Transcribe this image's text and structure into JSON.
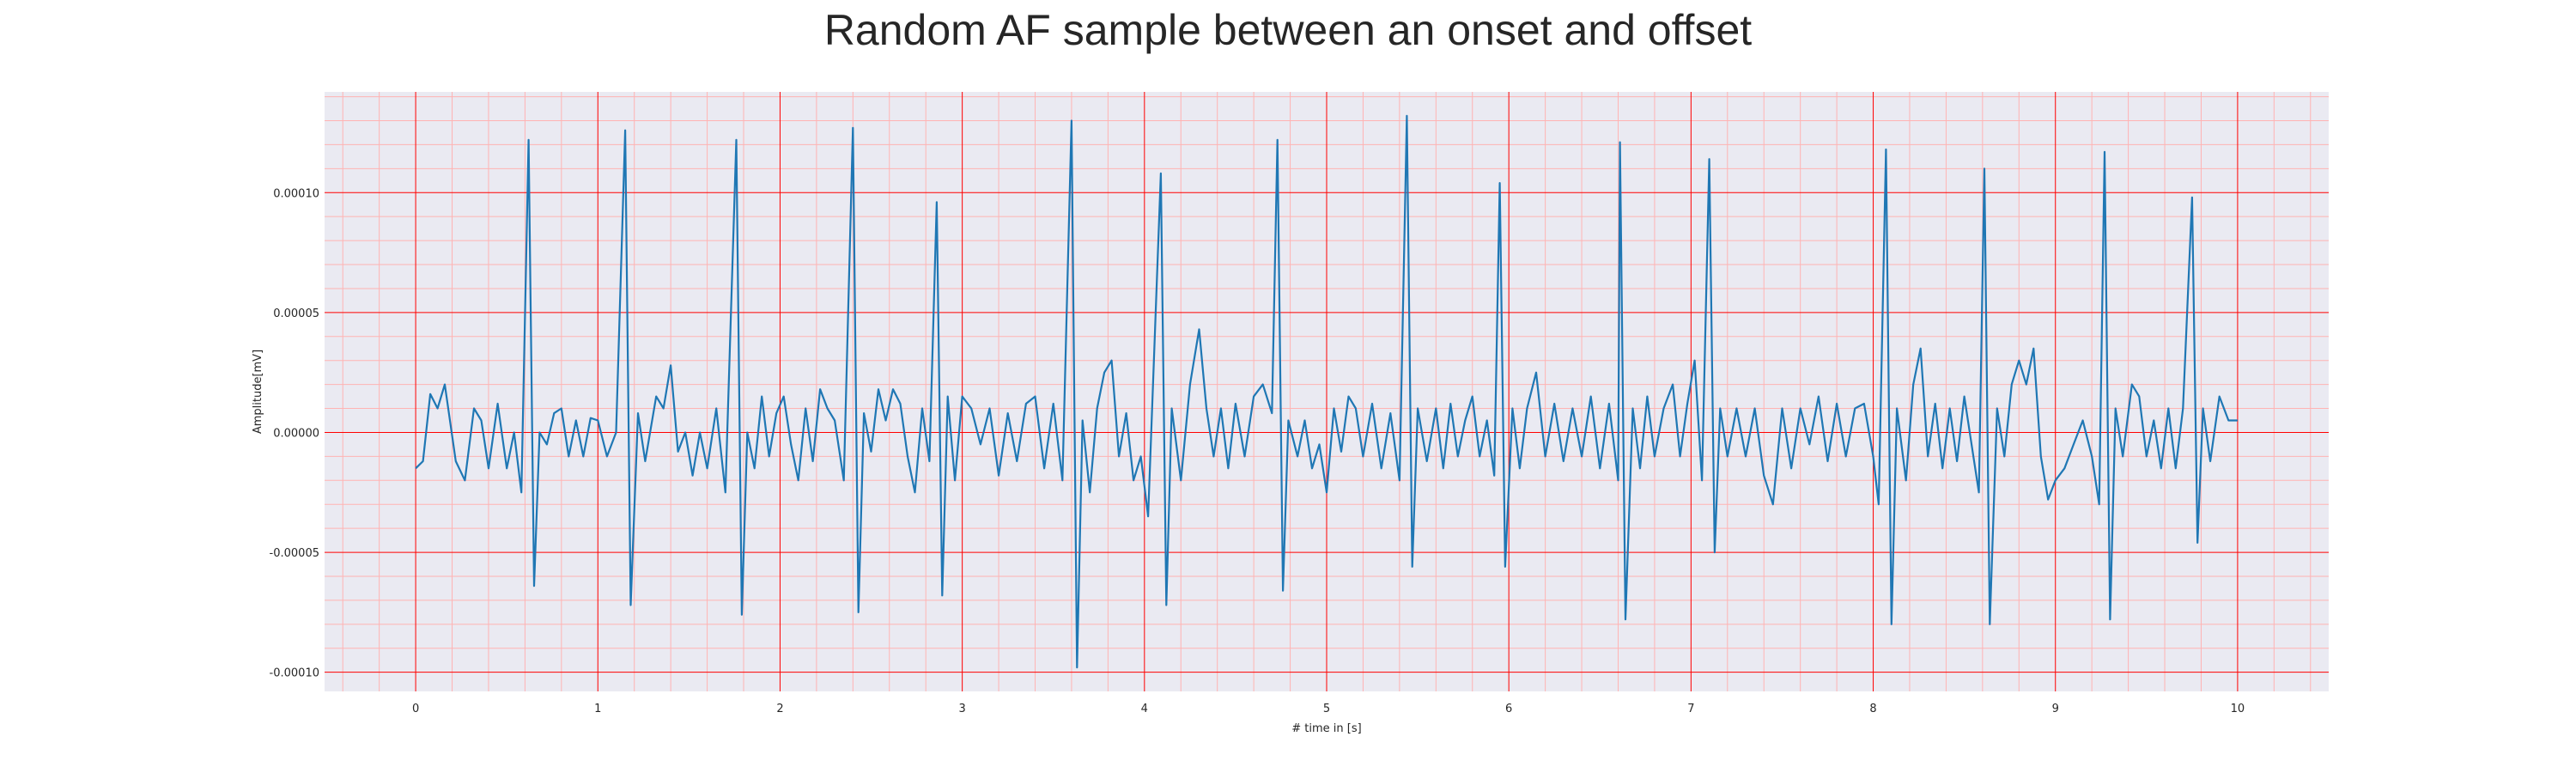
{
  "chart_data": {
    "type": "line",
    "title": "Random AF sample between an onset and offset",
    "xlabel": "# time in [s]",
    "ylabel": "Amplitude[mV]",
    "xlim": [
      -0.5,
      10.5
    ],
    "ylim": [
      -0.000108,
      0.000142
    ],
    "xticks": [
      "0",
      "1",
      "2",
      "3",
      "4",
      "5",
      "6",
      "7",
      "8",
      "9",
      "10"
    ],
    "yticks": [
      "-0.00010",
      "-0.00005",
      "0.00000",
      "0.00005",
      "0.00010"
    ],
    "grid": true,
    "minor_grid": true,
    "colors": {
      "line": "#1f77b4",
      "background": "#eaeaf2",
      "major_grid": "#ff0000",
      "minor_grid": "#ffb3b3"
    },
    "series": [
      {
        "values": [
          [
            0.0,
            -1.5e-05
          ],
          [
            0.04,
            -1.2e-05
          ],
          [
            0.08,
            1.6e-05
          ],
          [
            0.12,
            1e-05
          ],
          [
            0.16,
            2e-05
          ],
          [
            0.22,
            -1.2e-05
          ],
          [
            0.27,
            -2e-05
          ],
          [
            0.32,
            1e-05
          ],
          [
            0.36,
            5e-06
          ],
          [
            0.4,
            -1.5e-05
          ],
          [
            0.45,
            1.2e-05
          ],
          [
            0.5,
            -1.5e-05
          ],
          [
            0.54,
            0.0
          ],
          [
            0.58,
            -2.5e-05
          ],
          [
            0.62,
            0.000122
          ],
          [
            0.65,
            -6.4e-05
          ],
          [
            0.68,
            0.0
          ],
          [
            0.72,
            -5e-06
          ],
          [
            0.76,
            8e-06
          ],
          [
            0.8,
            1e-05
          ],
          [
            0.84,
            -1e-05
          ],
          [
            0.88,
            5e-06
          ],
          [
            0.92,
            -1e-05
          ],
          [
            0.96,
            6e-06
          ],
          [
            1.0,
            5e-06
          ],
          [
            1.05,
            -1e-05
          ],
          [
            1.1,
            0.0
          ],
          [
            1.15,
            0.000126
          ],
          [
            1.18,
            -7.2e-05
          ],
          [
            1.22,
            8e-06
          ],
          [
            1.26,
            -1.2e-05
          ],
          [
            1.32,
            1.5e-05
          ],
          [
            1.36,
            1e-05
          ],
          [
            1.4,
            2.8e-05
          ],
          [
            1.44,
            -8e-06
          ],
          [
            1.48,
            0.0
          ],
          [
            1.52,
            -1.8e-05
          ],
          [
            1.56,
            0.0
          ],
          [
            1.6,
            -1.5e-05
          ],
          [
            1.65,
            1e-05
          ],
          [
            1.7,
            -2.5e-05
          ],
          [
            1.76,
            0.000122
          ],
          [
            1.79,
            -7.6e-05
          ],
          [
            1.82,
            0.0
          ],
          [
            1.86,
            -1.5e-05
          ],
          [
            1.9,
            1.5e-05
          ],
          [
            1.94,
            -1e-05
          ],
          [
            1.98,
            8e-06
          ],
          [
            2.02,
            1.5e-05
          ],
          [
            2.06,
            -5e-06
          ],
          [
            2.1,
            -2e-05
          ],
          [
            2.14,
            1e-05
          ],
          [
            2.18,
            -1.2e-05
          ],
          [
            2.22,
            1.8e-05
          ],
          [
            2.26,
            1e-05
          ],
          [
            2.3,
            5e-06
          ],
          [
            2.35,
            -2e-05
          ],
          [
            2.4,
            0.000127
          ],
          [
            2.43,
            -7.5e-05
          ],
          [
            2.46,
            8e-06
          ],
          [
            2.5,
            -8e-06
          ],
          [
            2.54,
            1.8e-05
          ],
          [
            2.58,
            5e-06
          ],
          [
            2.62,
            1.8e-05
          ],
          [
            2.66,
            1.2e-05
          ],
          [
            2.7,
            -1e-05
          ],
          [
            2.74,
            -2.5e-05
          ],
          [
            2.78,
            1e-05
          ],
          [
            2.82,
            -1.2e-05
          ],
          [
            2.86,
            9.6e-05
          ],
          [
            2.89,
            -6.8e-05
          ],
          [
            2.92,
            1.5e-05
          ],
          [
            2.96,
            -2e-05
          ],
          [
            3.0,
            1.5e-05
          ],
          [
            3.05,
            1e-05
          ],
          [
            3.1,
            -5e-06
          ],
          [
            3.15,
            1e-05
          ],
          [
            3.2,
            -1.8e-05
          ],
          [
            3.25,
            8e-06
          ],
          [
            3.3,
            -1.2e-05
          ],
          [
            3.35,
            1.2e-05
          ],
          [
            3.4,
            1.5e-05
          ],
          [
            3.45,
            -1.5e-05
          ],
          [
            3.5,
            1.2e-05
          ],
          [
            3.55,
            -2e-05
          ],
          [
            3.6,
            0.00013
          ],
          [
            3.63,
            -9.8e-05
          ],
          [
            3.66,
            5e-06
          ],
          [
            3.7,
            -2.5e-05
          ],
          [
            3.74,
            1e-05
          ],
          [
            3.78,
            2.5e-05
          ],
          [
            3.82,
            3e-05
          ],
          [
            3.86,
            -1e-05
          ],
          [
            3.9,
            8e-06
          ],
          [
            3.94,
            -2e-05
          ],
          [
            3.98,
            -1e-05
          ],
          [
            4.02,
            -3.5e-05
          ],
          [
            4.09,
            0.000108
          ],
          [
            4.12,
            -7.2e-05
          ],
          [
            4.15,
            1e-05
          ],
          [
            4.2,
            -2e-05
          ],
          [
            4.25,
            2e-05
          ],
          [
            4.3,
            4.3e-05
          ],
          [
            4.34,
            1e-05
          ],
          [
            4.38,
            -1e-05
          ],
          [
            4.42,
            1e-05
          ],
          [
            4.46,
            -1.5e-05
          ],
          [
            4.5,
            1.2e-05
          ],
          [
            4.55,
            -1e-05
          ],
          [
            4.6,
            1.5e-05
          ],
          [
            4.65,
            2e-05
          ],
          [
            4.7,
            8e-06
          ],
          [
            4.73,
            0.000122
          ],
          [
            4.76,
            -6.6e-05
          ],
          [
            4.79,
            5e-06
          ],
          [
            4.84,
            -1e-05
          ],
          [
            4.88,
            5e-06
          ],
          [
            4.92,
            -1.5e-05
          ],
          [
            4.96,
            -5e-06
          ],
          [
            5.0,
            -2.5e-05
          ],
          [
            5.04,
            1e-05
          ],
          [
            5.08,
            -8e-06
          ],
          [
            5.12,
            1.5e-05
          ],
          [
            5.16,
            1e-05
          ],
          [
            5.2,
            -1e-05
          ],
          [
            5.25,
            1.2e-05
          ],
          [
            5.3,
            -1.5e-05
          ],
          [
            5.35,
            8e-06
          ],
          [
            5.4,
            -2e-05
          ],
          [
            5.44,
            0.000132
          ],
          [
            5.47,
            -5.6e-05
          ],
          [
            5.5,
            1e-05
          ],
          [
            5.55,
            -1.2e-05
          ],
          [
            5.6,
            1e-05
          ],
          [
            5.64,
            -1.5e-05
          ],
          [
            5.68,
            1.2e-05
          ],
          [
            5.72,
            -1e-05
          ],
          [
            5.76,
            5e-06
          ],
          [
            5.8,
            1.5e-05
          ],
          [
            5.84,
            -1e-05
          ],
          [
            5.88,
            5e-06
          ],
          [
            5.92,
            -1.8e-05
          ],
          [
            5.95,
            0.000104
          ],
          [
            5.98,
            -5.6e-05
          ],
          [
            6.02,
            1e-05
          ],
          [
            6.06,
            -1.5e-05
          ],
          [
            6.1,
            1e-05
          ],
          [
            6.15,
            2.5e-05
          ],
          [
            6.2,
            -1e-05
          ],
          [
            6.25,
            1.2e-05
          ],
          [
            6.3,
            -1.2e-05
          ],
          [
            6.35,
            1e-05
          ],
          [
            6.4,
            -1e-05
          ],
          [
            6.45,
            1.5e-05
          ],
          [
            6.5,
            -1.5e-05
          ],
          [
            6.55,
            1.2e-05
          ],
          [
            6.6,
            -2e-05
          ],
          [
            6.61,
            0.000121
          ],
          [
            6.64,
            -7.8e-05
          ],
          [
            6.68,
            1e-05
          ],
          [
            6.72,
            -1.5e-05
          ],
          [
            6.76,
            1.5e-05
          ],
          [
            6.8,
            -1e-05
          ],
          [
            6.85,
            1e-05
          ],
          [
            6.9,
            2e-05
          ],
          [
            6.94,
            -1e-05
          ],
          [
            6.98,
            1.2e-05
          ],
          [
            7.02,
            3e-05
          ],
          [
            7.06,
            -2e-05
          ],
          [
            7.1,
            0.000114
          ],
          [
            7.13,
            -5e-05
          ],
          [
            7.16,
            1e-05
          ],
          [
            7.2,
            -1e-05
          ],
          [
            7.25,
            1e-05
          ],
          [
            7.3,
            -1e-05
          ],
          [
            7.35,
            1e-05
          ],
          [
            7.4,
            -1.8e-05
          ],
          [
            7.45,
            -3e-05
          ],
          [
            7.5,
            1e-05
          ],
          [
            7.55,
            -1.5e-05
          ],
          [
            7.6,
            1e-05
          ],
          [
            7.65,
            -5e-06
          ],
          [
            7.7,
            1.5e-05
          ],
          [
            7.75,
            -1.2e-05
          ],
          [
            7.8,
            1.2e-05
          ],
          [
            7.85,
            -1e-05
          ],
          [
            7.9,
            1e-05
          ],
          [
            7.95,
            1.2e-05
          ],
          [
            8.0,
            -1e-05
          ],
          [
            8.03,
            -3e-05
          ],
          [
            8.07,
            0.000118
          ],
          [
            8.1,
            -8e-05
          ],
          [
            8.13,
            1e-05
          ],
          [
            8.18,
            -2e-05
          ],
          [
            8.22,
            2e-05
          ],
          [
            8.26,
            3.5e-05
          ],
          [
            8.3,
            -1e-05
          ],
          [
            8.34,
            1.2e-05
          ],
          [
            8.38,
            -1.5e-05
          ],
          [
            8.42,
            1e-05
          ],
          [
            8.46,
            -1.2e-05
          ],
          [
            8.5,
            1.5e-05
          ],
          [
            8.55,
            -1e-05
          ],
          [
            8.58,
            -2.5e-05
          ],
          [
            8.61,
            0.00011
          ],
          [
            8.64,
            -8e-05
          ],
          [
            8.68,
            1e-05
          ],
          [
            8.72,
            -1e-05
          ],
          [
            8.76,
            2e-05
          ],
          [
            8.8,
            3e-05
          ],
          [
            8.84,
            2e-05
          ],
          [
            8.88,
            3.5e-05
          ],
          [
            8.92,
            -1e-05
          ],
          [
            8.96,
            -2.8e-05
          ],
          [
            9.0,
            -2e-05
          ],
          [
            9.05,
            -1.5e-05
          ],
          [
            9.1,
            -5e-06
          ],
          [
            9.15,
            5e-06
          ],
          [
            9.2,
            -1e-05
          ],
          [
            9.24,
            -3e-05
          ],
          [
            9.27,
            0.000117
          ],
          [
            9.3,
            -7.8e-05
          ],
          [
            9.33,
            1e-05
          ],
          [
            9.37,
            -1e-05
          ],
          [
            9.42,
            2e-05
          ],
          [
            9.46,
            1.5e-05
          ],
          [
            9.5,
            -1e-05
          ],
          [
            9.54,
            5e-06
          ],
          [
            9.58,
            -1.5e-05
          ],
          [
            9.62,
            1e-05
          ],
          [
            9.66,
            -1.5e-05
          ],
          [
            9.7,
            1e-05
          ],
          [
            9.75,
            9.8e-05
          ],
          [
            9.78,
            -4.6e-05
          ],
          [
            9.81,
            1e-05
          ],
          [
            9.85,
            -1.2e-05
          ],
          [
            9.9,
            1.5e-05
          ],
          [
            9.95,
            5e-06
          ],
          [
            10.0,
            5e-06
          ]
        ]
      }
    ]
  }
}
